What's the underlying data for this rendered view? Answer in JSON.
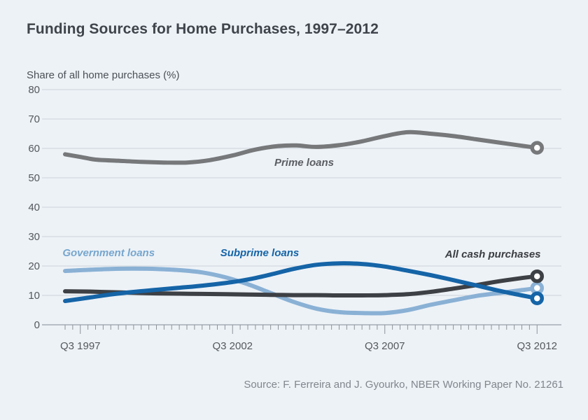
{
  "page": {
    "background_color": "#edf2f7"
  },
  "chart_data": {
    "type": "line",
    "title": "Funding Sources for Home Purchases, 1997–2012",
    "y_axis_label": "Share of all home purchases (%)",
    "source": "Source: F. Ferreira and J. Gyourko, NBER Working Paper No. 21261",
    "ylim": [
      0,
      80
    ],
    "y_tick_step": 10,
    "y_ticks": [
      80,
      70,
      60,
      50,
      40,
      30,
      20,
      10,
      0
    ],
    "x_range": [
      1997.0,
      2012.5
    ],
    "x_minor_tick_step": 0.25,
    "x_ticks": [
      {
        "t": 1997.5,
        "label": "Q3 1997"
      },
      {
        "t": 2002.5,
        "label": "Q3 2002"
      },
      {
        "t": 2007.5,
        "label": "Q3 2007"
      },
      {
        "t": 2012.5,
        "label": "Q3 2012"
      }
    ],
    "grid": "horizontal",
    "grid_color": "#cbd1d8",
    "axis_color": "#99a0a8",
    "tick_color": "#8d939a",
    "legend_position": "inline-labels",
    "series": [
      {
        "id": "prime",
        "name": "Prime loans",
        "color": "#76787a",
        "label_color": "#5b5e62",
        "label_at": {
          "t": 2004.85,
          "v": 55.2
        },
        "end_marker": true,
        "end_value": 60.2,
        "points": [
          [
            1997.0,
            58.0
          ],
          [
            1997.5,
            57.1
          ],
          [
            1998.0,
            56.2
          ],
          [
            1998.75,
            55.8
          ],
          [
            1999.5,
            55.4
          ],
          [
            2000.25,
            55.2
          ],
          [
            2001.0,
            55.2
          ],
          [
            2001.75,
            56.0
          ],
          [
            2002.5,
            57.6
          ],
          [
            2003.25,
            59.6
          ],
          [
            2004.0,
            60.8
          ],
          [
            2004.6,
            61.0
          ],
          [
            2005.25,
            60.5
          ],
          [
            2006.0,
            61.1
          ],
          [
            2006.75,
            62.4
          ],
          [
            2007.5,
            64.2
          ],
          [
            2008.25,
            65.5
          ],
          [
            2009.0,
            65.0
          ],
          [
            2009.75,
            64.2
          ],
          [
            2010.5,
            63.1
          ],
          [
            2011.25,
            62.0
          ],
          [
            2012.0,
            60.9
          ],
          [
            2012.5,
            60.2
          ]
        ]
      },
      {
        "id": "government",
        "name": "Government loans",
        "color": "#8ab1d5",
        "label_color": "#77a6ce",
        "label_at": {
          "t": 1998.43,
          "v": 24.5
        },
        "end_marker": true,
        "end_value": 12.5,
        "points": [
          [
            1997.0,
            18.3
          ],
          [
            1997.75,
            18.7
          ],
          [
            1998.5,
            19.0
          ],
          [
            1999.25,
            19.1
          ],
          [
            2000.0,
            19.0
          ],
          [
            2000.75,
            18.6
          ],
          [
            2001.5,
            17.8
          ],
          [
            2002.25,
            16.2
          ],
          [
            2003.0,
            13.8
          ],
          [
            2003.75,
            10.8
          ],
          [
            2004.5,
            7.8
          ],
          [
            2005.25,
            5.5
          ],
          [
            2006.0,
            4.3
          ],
          [
            2006.75,
            4.0
          ],
          [
            2007.5,
            4.0
          ],
          [
            2008.25,
            5.0
          ],
          [
            2009.0,
            6.8
          ],
          [
            2009.75,
            8.3
          ],
          [
            2010.5,
            9.8
          ],
          [
            2011.25,
            10.8
          ],
          [
            2012.0,
            11.8
          ],
          [
            2012.5,
            12.5
          ]
        ]
      },
      {
        "id": "cash",
        "name": "All cash purchases",
        "color": "#3d4044",
        "label_color": "#3a3d41",
        "label_at": {
          "t": 2011.05,
          "v": 24.0
        },
        "end_marker": true,
        "end_value": 16.5,
        "points": [
          [
            1997.0,
            11.4
          ],
          [
            1997.75,
            11.3
          ],
          [
            1998.5,
            11.1
          ],
          [
            1999.25,
            10.9
          ],
          [
            2000.0,
            10.7
          ],
          [
            2000.75,
            10.6
          ],
          [
            2001.5,
            10.5
          ],
          [
            2002.25,
            10.4
          ],
          [
            2003.0,
            10.3
          ],
          [
            2003.75,
            10.2
          ],
          [
            2004.5,
            10.1
          ],
          [
            2005.25,
            10.1
          ],
          [
            2006.0,
            10.0
          ],
          [
            2006.75,
            10.0
          ],
          [
            2007.5,
            10.1
          ],
          [
            2008.25,
            10.4
          ],
          [
            2009.0,
            11.2
          ],
          [
            2009.75,
            12.3
          ],
          [
            2010.5,
            13.5
          ],
          [
            2011.25,
            14.8
          ],
          [
            2012.0,
            15.9
          ],
          [
            2012.5,
            16.5
          ]
        ]
      },
      {
        "id": "subprime",
        "name": "Subprime loans",
        "color": "#1564a7",
        "label_color": "#1564a7",
        "label_at": {
          "t": 2003.39,
          "v": 24.5
        },
        "end_marker": true,
        "end_value": 9.0,
        "points": [
          [
            1997.0,
            8.1
          ],
          [
            1997.75,
            9.2
          ],
          [
            1998.5,
            10.3
          ],
          [
            1999.25,
            11.2
          ],
          [
            2000.0,
            11.9
          ],
          [
            2000.75,
            12.6
          ],
          [
            2001.5,
            13.3
          ],
          [
            2002.25,
            14.2
          ],
          [
            2003.0,
            15.4
          ],
          [
            2003.75,
            17.1
          ],
          [
            2004.5,
            19.0
          ],
          [
            2005.25,
            20.4
          ],
          [
            2006.0,
            20.9
          ],
          [
            2006.75,
            20.7
          ],
          [
            2007.5,
            19.8
          ],
          [
            2008.25,
            18.4
          ],
          [
            2009.0,
            16.9
          ],
          [
            2009.75,
            15.2
          ],
          [
            2010.5,
            13.4
          ],
          [
            2011.25,
            11.6
          ],
          [
            2012.0,
            10.0
          ],
          [
            2012.5,
            9.0
          ]
        ]
      }
    ]
  }
}
